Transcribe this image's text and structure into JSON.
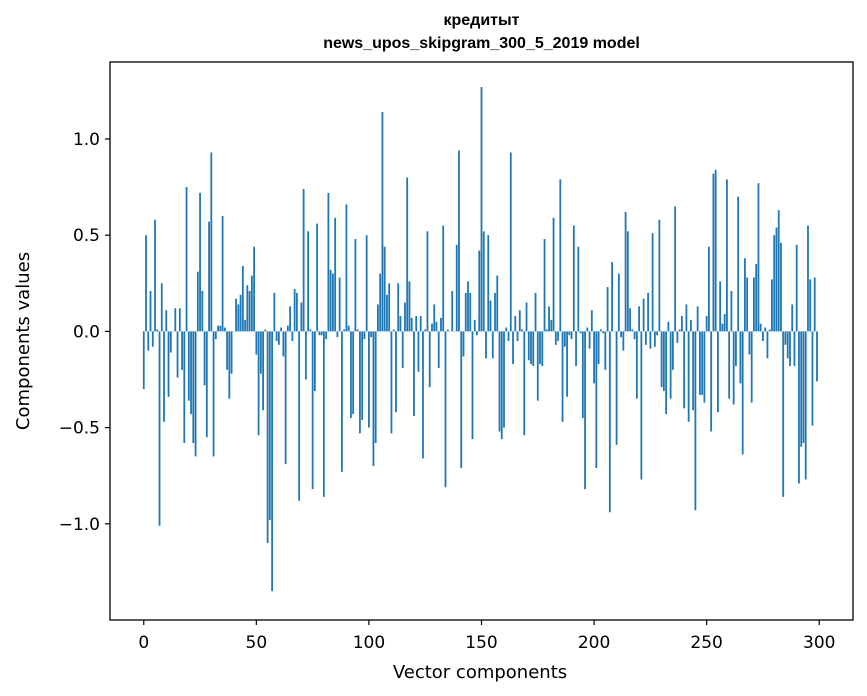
{
  "chart_data": {
    "type": "bar",
    "title": "кредитыт",
    "subtitle": "news_upos_skipgram_300_5_2019 model",
    "xlabel": "Vector components",
    "ylabel": "Components values",
    "xlim": [
      -15,
      315
    ],
    "ylim": [
      -1.5,
      1.4
    ],
    "xticks": [
      0,
      50,
      100,
      150,
      200,
      250,
      300
    ],
    "xtick_labels": [
      "0",
      "50",
      "100",
      "150",
      "200",
      "250",
      "300"
    ],
    "yticks": [
      -1.0,
      -0.5,
      0.0,
      0.5,
      1.0
    ],
    "ytick_labels": [
      "−1.0",
      "−0.5",
      "0.0",
      "0.5",
      "1.0"
    ],
    "grid": false,
    "bar_color": "#1f77b4",
    "values": [
      -0.3,
      0.5,
      -0.1,
      0.21,
      -0.08,
      0.58,
      0.01,
      -1.01,
      0.25,
      -0.47,
      0.11,
      -0.34,
      -0.11,
      0.0,
      0.12,
      -0.24,
      0.12,
      -0.2,
      -0.58,
      0.75,
      -0.36,
      -0.43,
      -0.58,
      -0.65,
      0.31,
      0.72,
      0.21,
      -0.28,
      -0.55,
      0.57,
      0.93,
      -0.65,
      -0.04,
      0.03,
      0.03,
      0.6,
      0.02,
      -0.2,
      -0.35,
      -0.22,
      0.0,
      0.17,
      0.14,
      0.19,
      0.34,
      0.06,
      0.24,
      0.21,
      0.29,
      0.44,
      -0.12,
      -0.54,
      -0.22,
      -0.41,
      0.01,
      -1.1,
      -0.98,
      -1.35,
      0.2,
      -0.05,
      -0.07,
      0.02,
      -0.13,
      -0.69,
      0.03,
      0.13,
      -0.05,
      0.22,
      0.2,
      -0.88,
      0.15,
      0.74,
      -0.25,
      0.52,
      0.01,
      -0.82,
      -0.31,
      0.56,
      -0.02,
      -0.02,
      -0.86,
      -0.04,
      0.72,
      0.32,
      0.3,
      0.59,
      -0.03,
      0.28,
      -0.73,
      0.01,
      0.66,
      0.03,
      -0.45,
      -0.43,
      0.48,
      0.01,
      -0.53,
      -0.46,
      -0.04,
      0.5,
      -0.5,
      -0.03,
      -0.7,
      -0.58,
      0.14,
      0.3,
      1.14,
      0.44,
      0.19,
      0.25,
      -0.53,
      0.01,
      -0.42,
      0.25,
      0.08,
      -0.19,
      0.15,
      0.8,
      0.26,
      0.07,
      -0.44,
      0.08,
      -0.21,
      0.08,
      -0.66,
      0.01,
      0.52,
      -0.29,
      0.04,
      0.14,
      0.05,
      -0.19,
      0.07,
      0.55,
      -0.81,
      0.01,
      0.0,
      0.21,
      0.0,
      0.45,
      0.94,
      -0.71,
      -0.13,
      0.2,
      0.26,
      0.2,
      -0.56,
      0.06,
      -0.02,
      0.42,
      1.27,
      0.52,
      -0.14,
      0.5,
      0.16,
      -0.14,
      0.2,
      0.29,
      -0.52,
      -0.56,
      -0.5,
      0.02,
      -0.05,
      0.93,
      -0.17,
      0.08,
      -0.05,
      0.11,
      0.01,
      -0.54,
      0.15,
      -0.15,
      -0.17,
      -0.18,
      0.2,
      -0.36,
      -0.17,
      -0.18,
      0.48,
      0.01,
      0.13,
      0.06,
      0.59,
      -0.07,
      -0.05,
      0.79,
      -0.47,
      -0.08,
      -0.34,
      -0.02,
      -0.04,
      0.55,
      -0.18,
      0.44,
      -0.01,
      -0.45,
      -0.82,
      0.02,
      -0.09,
      0.11,
      -0.27,
      -0.71,
      -0.17,
      0.01,
      -0.01,
      -0.2,
      0.23,
      -0.94,
      0.36,
      0.0,
      -0.59,
      0.3,
      -0.03,
      -0.1,
      0.62,
      0.52,
      0.12,
      0.01,
      -0.04,
      -0.35,
      0.13,
      -0.77,
      0.17,
      -0.07,
      0.2,
      -0.09,
      0.51,
      -0.08,
      -0.02,
      0.58,
      -0.29,
      -0.31,
      -0.43,
      0.05,
      -0.35,
      -0.2,
      0.65,
      -0.06,
      0.01,
      0.08,
      -0.4,
      0.14,
      -0.47,
      0.06,
      -0.41,
      -0.93,
      0.13,
      -0.33,
      -0.33,
      -0.37,
      0.08,
      0.44,
      -0.52,
      0.82,
      0.84,
      -0.42,
      0.26,
      0.04,
      0.09,
      0.79,
      -0.35,
      0.21,
      -0.38,
      -0.18,
      0.7,
      -0.27,
      -0.64,
      0.38,
      0.28,
      -0.12,
      -0.37,
      0.28,
      0.35,
      0.77,
      0.04,
      -0.05,
      0.02,
      -0.14,
      0.01,
      0.27,
      0.5,
      0.54,
      0.63,
      0.46,
      -0.86,
      -0.07,
      -0.14,
      -0.18,
      0.14,
      -0.18,
      0.45,
      -0.79,
      -0.6,
      -0.58,
      -0.77,
      0.55,
      0.27,
      -0.49,
      0.28,
      -0.26
    ]
  }
}
